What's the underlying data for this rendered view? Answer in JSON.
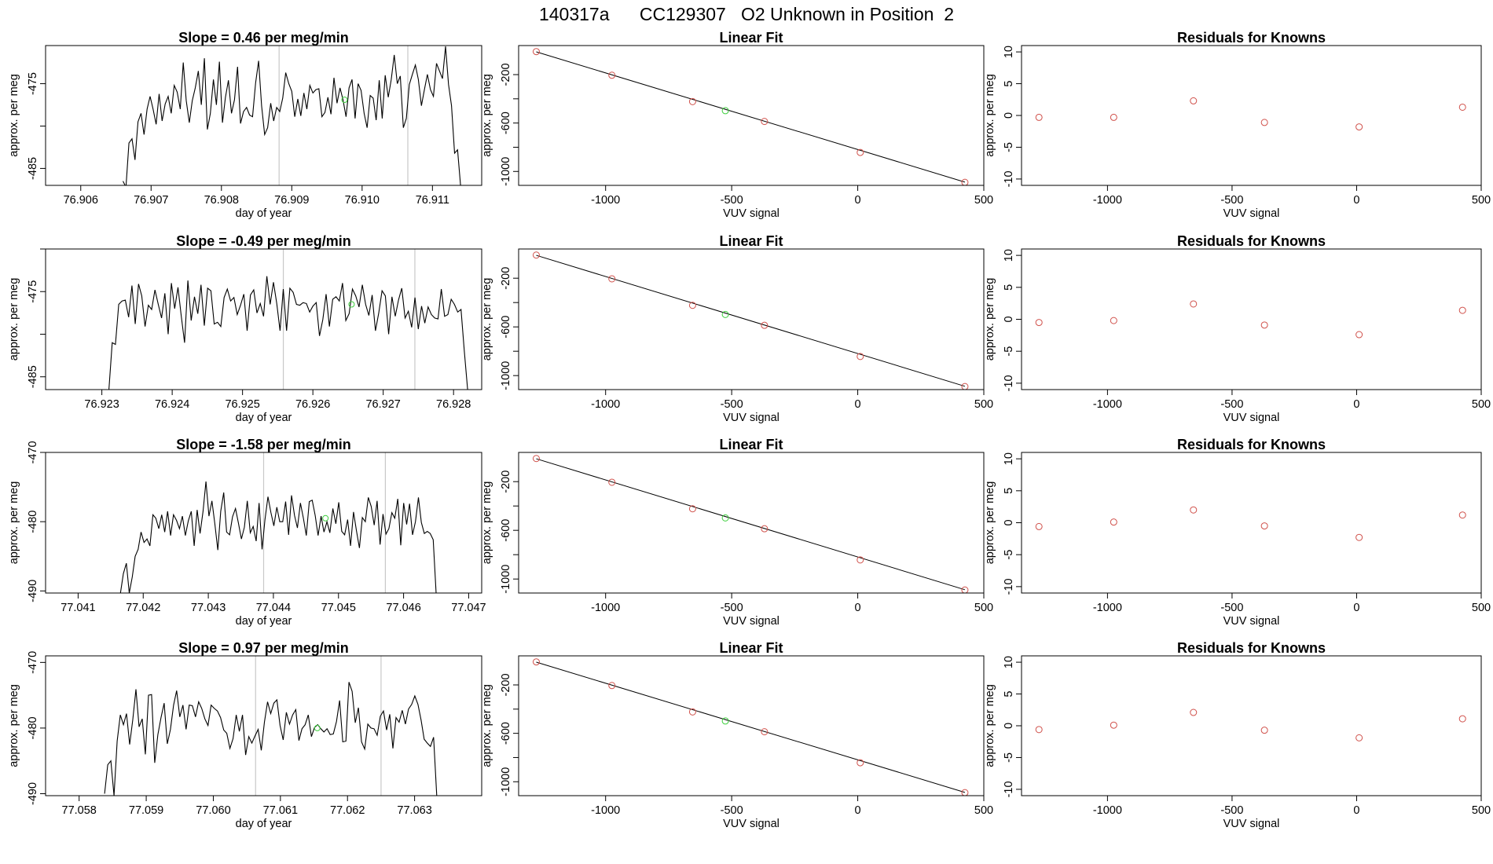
{
  "figure_title": "140317a      CC129307   O2 Unknown in Position  2",
  "colors": {
    "line": "#000000",
    "known_points": "#d0504a",
    "unknown_point": "#3ecf3e",
    "vlines": "#c8c8c8",
    "frame": "#000000"
  },
  "chart_data": [
    {
      "type": "line",
      "panel": "row1-left",
      "title": "Slope =  0.46  per meg/min",
      "xlabel": "day of year",
      "ylabel": "approx. per meg",
      "xlim": [
        76.9055,
        76.9117
      ],
      "ylim": [
        -487.0,
        -470.5
      ],
      "xticks": [
        76.906,
        76.907,
        76.908,
        76.909,
        76.91,
        76.911
      ],
      "xtick_labels": [
        "76.906",
        "76.907",
        "76.908",
        "76.909",
        "76.910",
        "76.911"
      ],
      "yticks": [
        -485,
        -480,
        -475,
        -470
      ],
      "ytick_labels": [
        "-485",
        "",
        "-475",
        ""
      ],
      "x_start": 76.9066,
      "x_end": 76.9114,
      "series_y": [
        -486.5,
        -487.2,
        -482.0,
        -481.5,
        -484.0,
        -479.5,
        -478.5,
        -481.0,
        -478.0,
        -476.5,
        -478.0,
        -479.8,
        -476.2,
        -479.4,
        -477.4,
        -476.5,
        -478.5,
        -475.2,
        -476.0,
        -478.0,
        -472.5,
        -477.0,
        -479.6,
        -477.0,
        -475.5,
        -473.5,
        -477.5,
        -472.0,
        -480.4,
        -478.5,
        -474.5,
        -477.5,
        -472.4,
        -479.6,
        -476.6,
        -474.6,
        -478.5,
        -476.9,
        -473.0,
        -479.7,
        -478.3,
        -477.8,
        -478.7,
        -478.9,
        -474.9,
        -472.3,
        -477.6,
        -481.0,
        -480.2,
        -477.3,
        -479.4,
        -477.8,
        -478.3,
        -476.7,
        -473.7,
        -475.0,
        -475.9,
        -478.9,
        -476.8,
        -478.8,
        -476.1,
        -478.0,
        -475.2,
        -476.1,
        -475.7,
        -475.6,
        -478.9,
        -478.4,
        -476.6,
        -478.6,
        -474.3,
        -477.3,
        -475.5,
        -476.9,
        -478.9,
        -475.5,
        -474.5,
        -479.1,
        -475.0,
        -475.8,
        -478.5,
        -480.2,
        -476.4,
        -476.7,
        -479.3,
        -474.6,
        -479.1,
        -474.0,
        -476.6,
        -474.5,
        -471.6,
        -475.0,
        -474.1,
        -480.2,
        -479.1,
        -475.1,
        -473.9,
        -472.8,
        -474.5,
        -477.6,
        -475.7,
        -473.9,
        -475.7,
        -476.5,
        -472.6,
        -473.5,
        -474.4,
        -470.6,
        -475.1,
        -477.6,
        -483.2,
        -482.8,
        -487.0
      ],
      "vlines": [
        76.90882,
        76.91065
      ],
      "unknown_point": {
        "x": 76.90975,
        "y": -476.9
      }
    },
    {
      "type": "scatter",
      "panel": "row1-middle",
      "title": "Linear Fit",
      "xlabel": "VUV signal",
      "ylabel": "approx. per meg",
      "xlim": [
        -1345,
        500
      ],
      "ylim": [
        -1115,
        40
      ],
      "xticks": [
        -1000,
        -500,
        0,
        500
      ],
      "xtick_labels": [
        "-1000",
        "-500",
        "0",
        "500"
      ],
      "yticks": [
        -1000,
        -800,
        -600,
        -400,
        -200
      ],
      "ytick_labels": [
        "-1000",
        "",
        "-600",
        "",
        "-200"
      ],
      "known_x": [
        -1275,
        -975,
        -655,
        -370,
        10,
        425
      ],
      "known_y": [
        -10,
        -205,
        -423,
        -587,
        -843,
        -1090
      ],
      "unknown_point": {
        "x": -525,
        "y": -498
      },
      "fit_line": {
        "x": [
          -1275,
          425
        ],
        "y": [
          -12,
          -1088
        ]
      }
    },
    {
      "type": "scatter",
      "panel": "row1-right",
      "title": "Residuals for Knowns",
      "xlabel": "VUV signal",
      "ylabel": "approx. per meg",
      "xlim": [
        -1345,
        500
      ],
      "ylim": [
        -11,
        11
      ],
      "xticks": [
        -1000,
        -500,
        0,
        500
      ],
      "xtick_labels": [
        "-1000",
        "-500",
        "0",
        "500"
      ],
      "yticks": [
        -10,
        -5,
        0,
        5,
        10
      ],
      "ytick_labels": [
        "-10",
        "-5",
        "0",
        "5",
        "10"
      ],
      "known_x": [
        -1275,
        -975,
        -655,
        -370,
        10,
        425
      ],
      "residuals": [
        -0.3,
        -0.3,
        2.3,
        -1.1,
        -1.8,
        1.3
      ]
    },
    {
      "type": "line",
      "panel": "row2-left",
      "title": "Slope =  -0.49  per meg/min",
      "xlabel": "day of year",
      "ylabel": "approx. per meg",
      "xlim": [
        76.9222,
        76.9284
      ],
      "ylim": [
        -486.5,
        -470.0
      ],
      "xticks": [
        76.923,
        76.924,
        76.925,
        76.926,
        76.927,
        76.928
      ],
      "xtick_labels": [
        "76.923",
        "76.924",
        "76.925",
        "76.926",
        "76.927",
        "76.928"
      ],
      "yticks": [
        -485,
        -480,
        -475,
        -470
      ],
      "ytick_labels": [
        "-485",
        "",
        "-475",
        ""
      ],
      "x_start": 76.9231,
      "x_end": 76.9282,
      "series_y": [
        -486.5,
        -481.0,
        -481.2,
        -476.5,
        -476.1,
        -476.0,
        -478.0,
        -474.3,
        -478.8,
        -474.1,
        -475.5,
        -479.1,
        -476.6,
        -477.1,
        -474.8,
        -476.5,
        -478.1,
        -475.2,
        -480.0,
        -474.0,
        -477.0,
        -474.5,
        -477.9,
        -481.0,
        -473.7,
        -478.4,
        -475.6,
        -477.6,
        -474.2,
        -479.0,
        -474.6,
        -474.9,
        -478.8,
        -478.6,
        -479.1,
        -475.7,
        -474.7,
        -476.1,
        -475.7,
        -477.7,
        -476.6,
        -475.3,
        -479.6,
        -475.4,
        -474.8,
        -477.5,
        -476.4,
        -477.9,
        -473.2,
        -476.5,
        -473.9,
        -476.4,
        -479.6,
        -474.7,
        -479.6,
        -474.6,
        -475.1,
        -476.5,
        -476.6,
        -476.3,
        -476.4,
        -477.4,
        -476.7,
        -476.3,
        -480.2,
        -478.3,
        -475.3,
        -479.1,
        -475.9,
        -475.6,
        -476.1,
        -474.0,
        -478.4,
        -477.6,
        -474.7,
        -475.5,
        -476.8,
        -474.2,
        -476.5,
        -477.8,
        -475.4,
        -479.6,
        -477.5,
        -474.9,
        -475.5,
        -480.0,
        -475.6,
        -477.9,
        -476.0,
        -474.6,
        -478.1,
        -477.3,
        -479.2,
        -475.7,
        -479.4,
        -476.7,
        -478.7,
        -476.8,
        -477.7,
        -478.1,
        -478.2,
        -474.7,
        -477.9,
        -477.7,
        -475.9,
        -476.5,
        -477.4,
        -477.1,
        -482.0,
        -486.5
      ],
      "vlines": [
        76.92558,
        76.92745
      ],
      "unknown_point": {
        "x": 76.92655,
        "y": -476.5
      }
    },
    {
      "type": "scatter",
      "panel": "row2-middle",
      "title": "Linear Fit",
      "xlabel": "VUV signal",
      "ylabel": "approx. per meg",
      "xlim": [
        -1345,
        500
      ],
      "ylim": [
        -1115,
        40
      ],
      "xticks": [
        -1000,
        -500,
        0,
        500
      ],
      "xtick_labels": [
        "-1000",
        "-500",
        "0",
        "500"
      ],
      "yticks": [
        -1000,
        -800,
        -600,
        -400,
        -200
      ],
      "ytick_labels": [
        "-1000",
        "",
        "-600",
        "",
        "-200"
      ],
      "known_x": [
        -1275,
        -975,
        -655,
        -370,
        10,
        425
      ],
      "known_y": [
        -10,
        -205,
        -423,
        -587,
        -843,
        -1090
      ],
      "unknown_point": {
        "x": -525,
        "y": -498
      },
      "fit_line": {
        "x": [
          -1275,
          425
        ],
        "y": [
          -12,
          -1088
        ]
      }
    },
    {
      "type": "scatter",
      "panel": "row2-right",
      "title": "Residuals for Knowns",
      "xlabel": "VUV signal",
      "ylabel": "approx. per meg",
      "xlim": [
        -1345,
        500
      ],
      "ylim": [
        -11,
        11
      ],
      "xticks": [
        -1000,
        -500,
        0,
        500
      ],
      "xtick_labels": [
        "-1000",
        "-500",
        "0",
        "500"
      ],
      "yticks": [
        -10,
        -5,
        0,
        5,
        10
      ],
      "ytick_labels": [
        "-10",
        "-5",
        "0",
        "5",
        "10"
      ],
      "known_x": [
        -1275,
        -975,
        -655,
        -370,
        10,
        425
      ],
      "residuals": [
        -0.5,
        -0.2,
        2.4,
        -0.9,
        -2.4,
        1.4
      ]
    },
    {
      "type": "line",
      "panel": "row3-left",
      "title": "Slope =  -1.58  per meg/min",
      "xlabel": "day of year",
      "ylabel": "approx. per meg",
      "xlim": [
        77.0405,
        77.0472
      ],
      "ylim": [
        -490.3,
        -470.0
      ],
      "xticks": [
        77.041,
        77.042,
        77.043,
        77.044,
        77.045,
        77.046,
        77.047
      ],
      "xtick_labels": [
        "77.041",
        "77.042",
        "77.043",
        "77.044",
        "77.045",
        "77.046",
        "77.047"
      ],
      "yticks": [
        -490,
        -480,
        -470
      ],
      "ytick_labels": [
        "-490",
        "-480",
        "-470"
      ],
      "x_start": 77.04165,
      "x_end": 77.0465,
      "series_y": [
        -490.3,
        -487.5,
        -486.0,
        -490.3,
        -488.0,
        -485.0,
        -484.0,
        -481.5,
        -483.0,
        -482.5,
        -483.5,
        -479.0,
        -479.5,
        -481.0,
        -479.0,
        -481.5,
        -478.5,
        -482.0,
        -479.0,
        -479.8,
        -481.0,
        -479.2,
        -482.0,
        -479.9,
        -478.5,
        -483.5,
        -478.3,
        -481.7,
        -478.5,
        -474.2,
        -479.2,
        -477.0,
        -480.3,
        -484.1,
        -478.5,
        -475.8,
        -481.5,
        -481.9,
        -479.3,
        -478.1,
        -480.2,
        -482.5,
        -480.8,
        -477.0,
        -481.6,
        -480.7,
        -482.8,
        -477.3,
        -484.0,
        -479.7,
        -476.4,
        -478.7,
        -480.6,
        -477.9,
        -480.0,
        -480.0,
        -477.1,
        -481.9,
        -476.2,
        -479.1,
        -480.9,
        -477.3,
        -479.5,
        -482.0,
        -477.1,
        -476.9,
        -479.1,
        -482.0,
        -479.2,
        -481.5,
        -480.0,
        -481.6,
        -478.1,
        -480.3,
        -477.2,
        -481.4,
        -481.9,
        -479.7,
        -483.5,
        -478.6,
        -481.3,
        -483.8,
        -479.4,
        -480.0,
        -476.5,
        -477.8,
        -480.5,
        -477.0,
        -483.3,
        -478.9,
        -481.8,
        -481.0,
        -478.7,
        -479.5,
        -476.7,
        -483.4,
        -477.3,
        -480.4,
        -477.4,
        -481.9,
        -480.0,
        -476.5,
        -480.1,
        -481.7,
        -481.4,
        -481.7,
        -482.6,
        -490.3
      ],
      "vlines": [
        77.04385,
        77.04572
      ],
      "unknown_point": {
        "x": 77.0448,
        "y": -479.5
      }
    },
    {
      "type": "scatter",
      "panel": "row3-middle",
      "title": "Linear Fit",
      "xlabel": "VUV signal",
      "ylabel": "approx. per meg",
      "xlim": [
        -1345,
        500
      ],
      "ylim": [
        -1115,
        40
      ],
      "xticks": [
        -1000,
        -500,
        0,
        500
      ],
      "xtick_labels": [
        "-1000",
        "-500",
        "0",
        "500"
      ],
      "yticks": [
        -1000,
        -800,
        -600,
        -400,
        -200
      ],
      "ytick_labels": [
        "-1000",
        "",
        "-600",
        "",
        "-200"
      ],
      "known_x": [
        -1275,
        -975,
        -655,
        -370,
        10,
        425
      ],
      "known_y": [
        -10,
        -205,
        -423,
        -587,
        -843,
        -1090
      ],
      "unknown_point": {
        "x": -525,
        "y": -498
      },
      "fit_line": {
        "x": [
          -1275,
          425
        ],
        "y": [
          -12,
          -1088
        ]
      }
    },
    {
      "type": "scatter",
      "panel": "row3-right",
      "title": "Residuals for Knowns",
      "xlabel": "VUV signal",
      "ylabel": "approx. per meg",
      "xlim": [
        -1345,
        500
      ],
      "ylim": [
        -11,
        11
      ],
      "xticks": [
        -1000,
        -500,
        0,
        500
      ],
      "xtick_labels": [
        "-1000",
        "-500",
        "0",
        "500"
      ],
      "yticks": [
        -10,
        -5,
        0,
        5,
        10
      ],
      "ytick_labels": [
        "-10",
        "-5",
        "0",
        "5",
        "10"
      ],
      "known_x": [
        -1275,
        -975,
        -655,
        -370,
        10,
        425
      ],
      "residuals": [
        -0.6,
        0.1,
        2.0,
        -0.5,
        -2.3,
        1.2
      ]
    },
    {
      "type": "line",
      "panel": "row4-left",
      "title": "Slope =  0.97  per meg/min",
      "xlabel": "day of year",
      "ylabel": "approx. per meg",
      "xlim": [
        77.0575,
        77.064
      ],
      "ylim": [
        -490.3,
        -469.0
      ],
      "xticks": [
        77.058,
        77.059,
        77.06,
        77.061,
        77.062,
        77.063
      ],
      "xtick_labels": [
        "77.058",
        "77.059",
        "77.060",
        "77.061",
        "77.062",
        "77.063"
      ],
      "yticks": [
        -490,
        -480,
        -470
      ],
      "ytick_labels": [
        "-490",
        "-480",
        "-470"
      ],
      "x_start": 77.05838,
      "x_end": 77.06333,
      "series_y": [
        -490.0,
        -485.6,
        -485.0,
        -490.3,
        -482.0,
        -478.0,
        -479.5,
        -477.8,
        -482.5,
        -478.7,
        -474.1,
        -479.8,
        -478.6,
        -484.0,
        -475.0,
        -474.9,
        -485.3,
        -481.0,
        -478.4,
        -476.2,
        -482.4,
        -480.2,
        -476.5,
        -474.3,
        -478.3,
        -476.5,
        -480.2,
        -476.5,
        -476.6,
        -478.3,
        -476.0,
        -477.0,
        -478.6,
        -479.6,
        -476.5,
        -477.0,
        -477.4,
        -478.4,
        -480.3,
        -480.8,
        -483.1,
        -481.6,
        -478.0,
        -480.5,
        -478.0,
        -484.1,
        -481.3,
        -482.3,
        -481.2,
        -480.2,
        -483.4,
        -479.1,
        -476.0,
        -477.8,
        -476.2,
        -475.7,
        -479.6,
        -481.8,
        -477.6,
        -479.4,
        -478.0,
        -477.2,
        -481.9,
        -480.1,
        -479.5,
        -478.0,
        -481.3,
        -479.9,
        -479.5,
        -480.1,
        -480.6,
        -480.1,
        -481.0,
        -480.9,
        -479.0,
        -475.8,
        -482.1,
        -482.0,
        -473.0,
        -474.4,
        -479.2,
        -476.9,
        -482.1,
        -483.2,
        -479.4,
        -480.0,
        -480.1,
        -481.1,
        -478.2,
        -477.4,
        -480.3,
        -477.9,
        -483.1,
        -478.4,
        -479.1,
        -477.3,
        -479.4,
        -477.1,
        -476.4,
        -475.1,
        -476.4,
        -478.8,
        -481.7,
        -482.3,
        -482.8,
        -481.4,
        -490.3
      ],
      "vlines": [
        77.06063,
        77.0625
      ],
      "unknown_point": {
        "x": 77.06155,
        "y": -480.0
      }
    },
    {
      "type": "scatter",
      "panel": "row4-middle",
      "title": "Linear Fit",
      "xlabel": "VUV signal",
      "ylabel": "approx. per meg",
      "xlim": [
        -1345,
        500
      ],
      "ylim": [
        -1115,
        40
      ],
      "xticks": [
        -1000,
        -500,
        0,
        500
      ],
      "xtick_labels": [
        "-1000",
        "-500",
        "0",
        "500"
      ],
      "yticks": [
        -1000,
        -800,
        -600,
        -400,
        -200
      ],
      "ytick_labels": [
        "-1000",
        "",
        "-600",
        "",
        "-200"
      ],
      "known_x": [
        -1275,
        -975,
        -655,
        -370,
        10,
        425
      ],
      "known_y": [
        -10,
        -205,
        -423,
        -587,
        -843,
        -1090
      ],
      "unknown_point": {
        "x": -525,
        "y": -498
      },
      "fit_line": {
        "x": [
          -1275,
          425
        ],
        "y": [
          -12,
          -1088
        ]
      }
    },
    {
      "type": "scatter",
      "panel": "row4-right",
      "title": "Residuals for Knowns",
      "xlabel": "VUV signal",
      "ylabel": "approx. per meg",
      "xlim": [
        -1345,
        500
      ],
      "ylim": [
        -11,
        11
      ],
      "xticks": [
        -1000,
        -500,
        0,
        500
      ],
      "xtick_labels": [
        "-1000",
        "-500",
        "0",
        "500"
      ],
      "yticks": [
        -10,
        -5,
        0,
        5,
        10
      ],
      "ytick_labels": [
        "-10",
        "-5",
        "0",
        "5",
        "10"
      ],
      "known_x": [
        -1275,
        -975,
        -655,
        -370,
        10,
        425
      ],
      "residuals": [
        -0.6,
        0.1,
        2.1,
        -0.7,
        -1.9,
        1.1
      ]
    }
  ]
}
